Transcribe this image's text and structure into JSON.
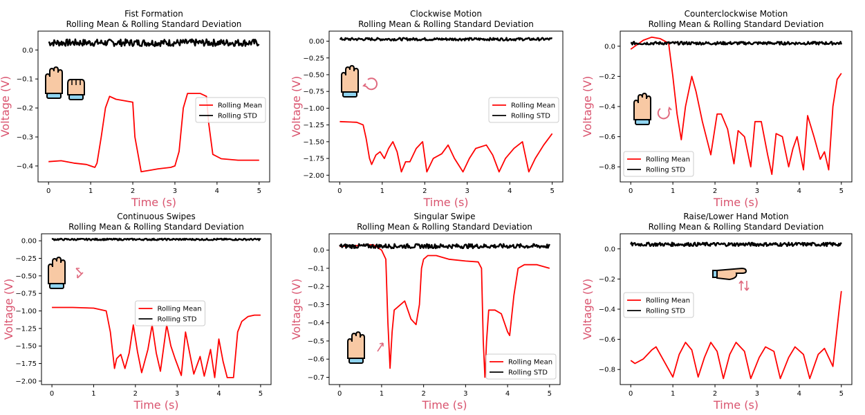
{
  "colors": {
    "mean": "#ff0000",
    "std": "#000000",
    "label": "#d9536e",
    "skin": "#f8c9a4",
    "cuff": "#8fd3ef",
    "arrow": "#e06a7f"
  },
  "chart_data": [
    {
      "type": "line",
      "title": "Fist Formation",
      "subtitle": "Rolling Mean & Rolling Standard Deviation",
      "xlabel": "Time (s)",
      "ylabel": "Voltage (V)",
      "xlim": [
        -0.25,
        5.25
      ],
      "ylim": [
        -0.455,
        0.065
      ],
      "xticks": [
        0,
        1,
        2,
        3,
        4,
        5
      ],
      "yticks": [
        -0.4,
        -0.3,
        -0.2,
        -0.1,
        0.0
      ],
      "ytick_labels": [
        "−0.4",
        "−0.3",
        "−0.2",
        "−0.1",
        "0.0"
      ],
      "legend": {
        "position": "center-right",
        "entries": [
          "Rolling Mean",
          "Rolling STD"
        ]
      },
      "icon": "fist-formation",
      "series": [
        {
          "name": "Rolling Mean",
          "color": "#ff0000",
          "x": [
            0,
            0.3,
            0.6,
            0.9,
            1.1,
            1.15,
            1.25,
            1.35,
            1.45,
            1.6,
            2.0,
            2.05,
            2.2,
            2.4,
            2.6,
            2.9,
            3.0,
            3.1,
            3.2,
            3.3,
            3.6,
            3.75,
            3.8,
            3.9,
            4.1,
            4.5,
            5.0
          ],
          "y": [
            -0.385,
            -0.382,
            -0.39,
            -0.395,
            -0.405,
            -0.39,
            -0.3,
            -0.2,
            -0.16,
            -0.17,
            -0.18,
            -0.3,
            -0.42,
            -0.415,
            -0.41,
            -0.405,
            -0.4,
            -0.35,
            -0.2,
            -0.15,
            -0.15,
            -0.16,
            -0.25,
            -0.36,
            -0.375,
            -0.38,
            -0.38
          ]
        },
        {
          "name": "Rolling STD",
          "color": "#000000",
          "x": [
            0,
            5
          ],
          "y": [
            0.025,
            0.025
          ],
          "noise": 0.012
        }
      ]
    },
    {
      "type": "line",
      "title": "Clockwise Motion",
      "subtitle": "Rolling Mean & Rolling Standard Deviation",
      "xlabel": "Time (s)",
      "ylabel": "Voltage (V)",
      "xlim": [
        -0.25,
        5.25
      ],
      "ylim": [
        -2.1,
        0.15
      ],
      "xticks": [
        0,
        1,
        2,
        3,
        4,
        5
      ],
      "yticks": [
        -2.0,
        -1.75,
        -1.5,
        -1.25,
        -1.0,
        -0.75,
        -0.5,
        -0.25,
        0.0
      ],
      "ytick_labels": [
        "−2.00",
        "−1.75",
        "−1.50",
        "−1.25",
        "−1.00",
        "−0.75",
        "−0.50",
        "−0.25",
        "0.00"
      ],
      "legend": {
        "position": "center-right",
        "entries": [
          "Rolling Mean",
          "Rolling STD"
        ]
      },
      "icon": "clockwise-motion",
      "series": [
        {
          "name": "Rolling Mean",
          "color": "#ff0000",
          "x": [
            0,
            0.4,
            0.55,
            0.62,
            0.7,
            0.75,
            0.85,
            0.95,
            1.05,
            1.15,
            1.25,
            1.35,
            1.45,
            1.55,
            1.65,
            1.8,
            1.95,
            2.05,
            2.2,
            2.4,
            2.55,
            2.7,
            2.9,
            3.05,
            3.2,
            3.45,
            3.6,
            3.75,
            3.9,
            4.1,
            4.3,
            4.45,
            4.6,
            4.8,
            5.0
          ],
          "y": [
            -1.2,
            -1.21,
            -1.25,
            -1.45,
            -1.75,
            -1.84,
            -1.7,
            -1.65,
            -1.75,
            -1.6,
            -1.5,
            -1.65,
            -1.95,
            -1.8,
            -1.8,
            -1.6,
            -1.5,
            -1.95,
            -1.75,
            -1.68,
            -1.55,
            -1.75,
            -1.95,
            -1.75,
            -1.6,
            -1.55,
            -1.7,
            -1.95,
            -1.75,
            -1.6,
            -1.5,
            -1.95,
            -1.75,
            -1.55,
            -1.38
          ]
        },
        {
          "name": "Rolling STD",
          "color": "#000000",
          "x": [
            0,
            5
          ],
          "y": [
            0.03,
            0.03
          ],
          "noise": 0.02
        }
      ]
    },
    {
      "type": "line",
      "title": "Counterclockwise Motion",
      "subtitle": "Rolling Mean & Rolling Standard Deviation",
      "xlabel": "Time (s)",
      "ylabel": "Voltage (V)",
      "xlim": [
        -0.25,
        5.25
      ],
      "ylim": [
        -0.9,
        0.1
      ],
      "xticks": [
        0,
        1,
        2,
        3,
        4,
        5
      ],
      "yticks": [
        -0.8,
        -0.6,
        -0.4,
        -0.2,
        0.0
      ],
      "ytick_labels": [
        "−0.8",
        "−0.6",
        "−0.4",
        "−0.2",
        "0.0"
      ],
      "legend": {
        "position": "lower-left",
        "entries": [
          "Rolling Mean",
          "Rolling STD"
        ]
      },
      "icon": "counterclockwise-motion",
      "series": [
        {
          "name": "Rolling Mean",
          "color": "#ff0000",
          "x": [
            0,
            0.1,
            0.3,
            0.5,
            0.7,
            0.9,
            1.0,
            1.1,
            1.2,
            1.3,
            1.45,
            1.55,
            1.7,
            1.9,
            2.05,
            2.15,
            2.3,
            2.45,
            2.55,
            2.7,
            2.85,
            2.95,
            3.1,
            3.25,
            3.35,
            3.45,
            3.6,
            3.75,
            3.85,
            3.95,
            4.1,
            4.2,
            4.35,
            4.5,
            4.6,
            4.7,
            4.8,
            4.9,
            5.0
          ],
          "y": [
            -0.02,
            0.0,
            0.04,
            0.06,
            0.05,
            0.02,
            -0.2,
            -0.45,
            -0.62,
            -0.4,
            -0.2,
            -0.3,
            -0.5,
            -0.72,
            -0.45,
            -0.45,
            -0.55,
            -0.78,
            -0.56,
            -0.6,
            -0.8,
            -0.5,
            -0.5,
            -0.72,
            -0.85,
            -0.58,
            -0.6,
            -0.8,
            -0.68,
            -0.6,
            -0.82,
            -0.46,
            -0.6,
            -0.75,
            -0.7,
            -0.82,
            -0.4,
            -0.22,
            -0.18
          ]
        },
        {
          "name": "Rolling STD",
          "color": "#000000",
          "x": [
            0,
            5
          ],
          "y": [
            0.02,
            0.02
          ],
          "noise": 0.01
        }
      ]
    },
    {
      "type": "line",
      "title": "Continuous Swipes",
      "subtitle": "Rolling Mean & Rolling Standard Deviation",
      "xlabel": "Time (s)",
      "ylabel": "Voltage (V)",
      "xlim": [
        -0.25,
        5.25
      ],
      "ylim": [
        -2.05,
        0.1
      ],
      "xticks": [
        0,
        1,
        2,
        3,
        4,
        5
      ],
      "yticks": [
        -2.0,
        -1.75,
        -1.5,
        -1.25,
        -1.0,
        -0.75,
        -0.5,
        -0.25,
        0.0
      ],
      "ytick_labels": [
        "−2.00",
        "−1.75",
        "−1.50",
        "−1.25",
        "−1.00",
        "−0.75",
        "−0.50",
        "−0.25",
        "0.00"
      ],
      "legend": {
        "position": "center",
        "entries": [
          "Rolling Mean",
          "Rolling STD"
        ]
      },
      "icon": "continuous-swipes",
      "series": [
        {
          "name": "Rolling Mean",
          "color": "#ff0000",
          "x": [
            0,
            0.5,
            1.0,
            1.3,
            1.4,
            1.5,
            1.55,
            1.65,
            1.75,
            1.85,
            1.95,
            2.05,
            2.15,
            2.3,
            2.4,
            2.5,
            2.6,
            2.75,
            2.85,
            2.95,
            3.1,
            3.2,
            3.3,
            3.4,
            3.55,
            3.65,
            3.8,
            3.9,
            4.0,
            4.1,
            4.2,
            4.35,
            4.45,
            4.55,
            4.7,
            4.85,
            5.0
          ],
          "y": [
            -0.95,
            -0.95,
            -0.96,
            -1.0,
            -1.3,
            -1.82,
            -1.68,
            -1.62,
            -1.82,
            -1.6,
            -1.2,
            -1.58,
            -1.88,
            -1.55,
            -1.2,
            -1.6,
            -1.86,
            -1.2,
            -1.5,
            -1.68,
            -1.92,
            -1.3,
            -1.6,
            -1.9,
            -1.65,
            -1.93,
            -1.55,
            -1.95,
            -1.4,
            -1.72,
            -1.95,
            -1.95,
            -1.3,
            -1.15,
            -1.08,
            -1.06,
            -1.06
          ]
        },
        {
          "name": "Rolling STD",
          "color": "#000000",
          "x": [
            0,
            5
          ],
          "y": [
            0.02,
            0.02
          ],
          "noise": 0.012
        }
      ]
    },
    {
      "type": "line",
      "title": "Singular Swipe",
      "subtitle": "Rolling Mean & Rolling Standard Deviation",
      "xlabel": "Time (s)",
      "ylabel": "Voltage (V)",
      "xlim": [
        -0.25,
        5.25
      ],
      "ylim": [
        -0.74,
        0.09
      ],
      "xticks": [
        0,
        1,
        2,
        3,
        4,
        5
      ],
      "yticks": [
        -0.7,
        -0.6,
        -0.5,
        -0.4,
        -0.3,
        -0.2,
        -0.1,
        0.0
      ],
      "ytick_labels": [
        "−0.7",
        "−0.6",
        "−0.5",
        "−0.4",
        "−0.3",
        "−0.2",
        "−0.1",
        "0.0"
      ],
      "legend": {
        "position": "lower-right",
        "entries": [
          "Rolling Mean",
          "Rolling STD"
        ]
      },
      "icon": "singular-swipe",
      "series": [
        {
          "name": "Rolling Mean",
          "color": "#ff0000",
          "x": [
            0,
            0.8,
            1.0,
            1.1,
            1.15,
            1.2,
            1.25,
            1.3,
            1.4,
            1.55,
            1.7,
            1.82,
            1.9,
            1.95,
            2.0,
            2.1,
            2.3,
            2.6,
            3.0,
            3.3,
            3.38,
            3.42,
            3.46,
            3.5,
            3.55,
            3.7,
            3.85,
            4.0,
            4.05,
            4.15,
            4.25,
            4.4,
            4.7,
            5.0
          ],
          "y": [
            0.02,
            0.03,
            0.0,
            -0.05,
            -0.4,
            -0.65,
            -0.45,
            -0.33,
            -0.31,
            -0.28,
            -0.38,
            -0.41,
            -0.3,
            -0.1,
            -0.05,
            -0.03,
            -0.03,
            -0.05,
            -0.06,
            -0.065,
            -0.1,
            -0.5,
            -0.7,
            -0.5,
            -0.33,
            -0.33,
            -0.35,
            -0.45,
            -0.47,
            -0.25,
            -0.1,
            -0.08,
            -0.08,
            -0.1
          ]
        },
        {
          "name": "Rolling STD",
          "color": "#000000",
          "x": [
            0,
            5
          ],
          "y": [
            0.022,
            0.022
          ],
          "noise": 0.012
        }
      ]
    },
    {
      "type": "line",
      "title": "Raise/Lower Hand Motion",
      "subtitle": "Rolling Mean & Rolling Standard Deviation",
      "xlabel": "Time (s)",
      "ylabel": "Voltage (V)",
      "xlim": [
        -0.25,
        5.25
      ],
      "ylim": [
        -0.9,
        0.1
      ],
      "xticks": [
        0,
        1,
        2,
        3,
        4,
        5
      ],
      "yticks": [
        -0.8,
        -0.6,
        -0.4,
        -0.2,
        0.0
      ],
      "ytick_labels": [
        "−0.8",
        "−0.6",
        "−0.4",
        "−0.2",
        "0.0"
      ],
      "legend": {
        "position": "center-left",
        "entries": [
          "Rolling Mean",
          "Rolling STD"
        ]
      },
      "icon": "raise-lower-hand",
      "series": [
        {
          "name": "Rolling Mean",
          "color": "#ff0000",
          "x": [
            0,
            0.1,
            0.3,
            0.5,
            0.6,
            0.8,
            1.0,
            1.15,
            1.3,
            1.45,
            1.6,
            1.75,
            1.9,
            2.05,
            2.2,
            2.35,
            2.5,
            2.7,
            2.85,
            3.05,
            3.2,
            3.4,
            3.55,
            3.75,
            3.9,
            4.1,
            4.25,
            4.45,
            4.6,
            4.8,
            4.95,
            5.0
          ],
          "y": [
            -0.74,
            -0.76,
            -0.73,
            -0.67,
            -0.65,
            -0.75,
            -0.85,
            -0.7,
            -0.62,
            -0.67,
            -0.85,
            -0.72,
            -0.62,
            -0.68,
            -0.86,
            -0.7,
            -0.62,
            -0.68,
            -0.86,
            -0.72,
            -0.65,
            -0.68,
            -0.86,
            -0.72,
            -0.65,
            -0.7,
            -0.86,
            -0.7,
            -0.66,
            -0.78,
            -0.4,
            -0.28
          ]
        },
        {
          "name": "Rolling STD",
          "color": "#000000",
          "x": [
            0,
            5
          ],
          "y": [
            0.03,
            0.03
          ],
          "noise": 0.012
        }
      ]
    }
  ]
}
